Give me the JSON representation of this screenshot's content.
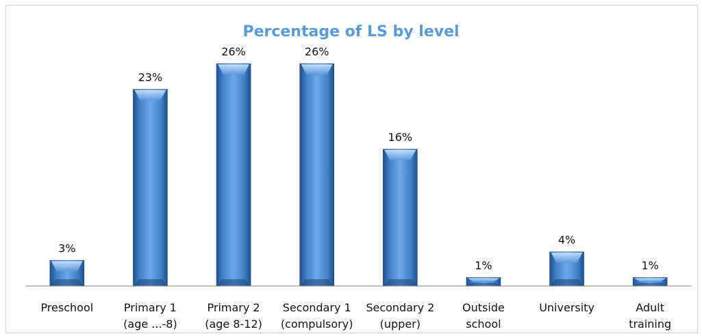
{
  "chart_data": {
    "type": "bar",
    "title": "Percentage of LS by level",
    "categories": [
      [
        "Preschool"
      ],
      [
        "Primary 1",
        "(age ...-8)"
      ],
      [
        "Primary 2",
        "(age 8-12)"
      ],
      [
        "Secondary 1",
        "(compulsory)"
      ],
      [
        "Secondary 2",
        "(upper)"
      ],
      [
        "Outside",
        "school"
      ],
      [
        "University"
      ],
      [
        "Adult",
        "training"
      ]
    ],
    "values": [
      3,
      23,
      26,
      26,
      16,
      1,
      4,
      1
    ],
    "data_labels": [
      "3%",
      "23%",
      "26%",
      "26%",
      "16%",
      "1%",
      "4%",
      "1%"
    ],
    "ylim": [
      0,
      30
    ],
    "grid": false,
    "legend": "none",
    "colors": {
      "bar": "#4f8fd4",
      "bar_dark": "#1f4f8a",
      "title": "#5b9bd5",
      "axis": "#808080"
    }
  }
}
